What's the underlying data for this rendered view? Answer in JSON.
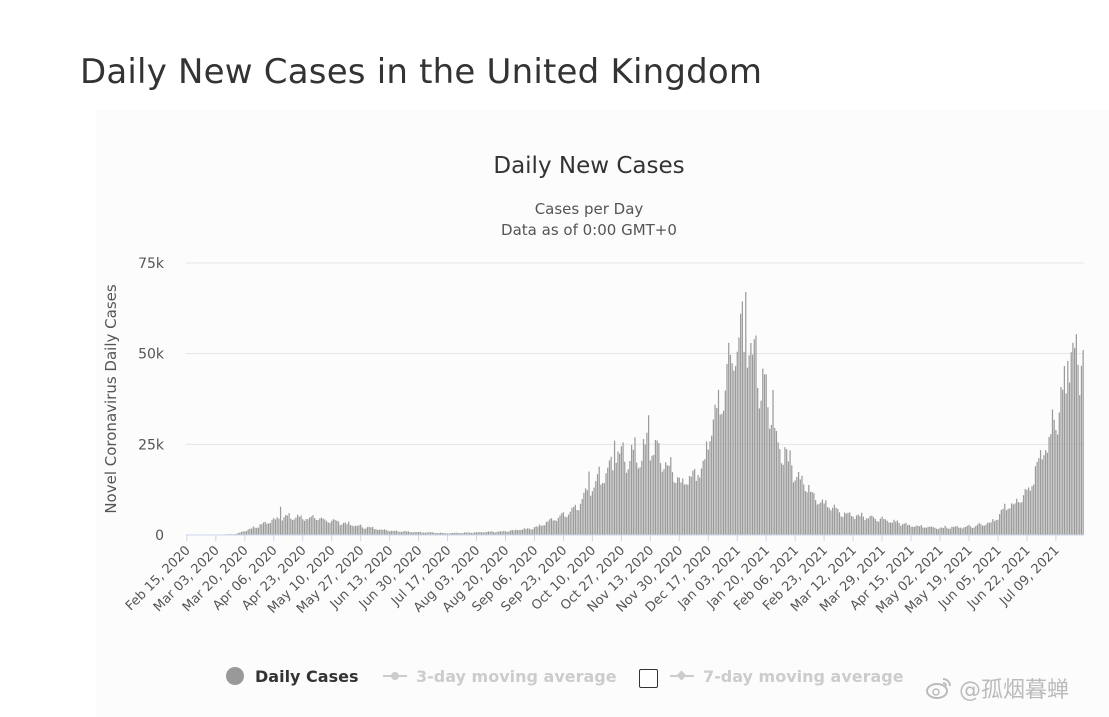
{
  "page": {
    "title": "Daily New Cases in the United Kingdom"
  },
  "colors": {
    "bar": "#9a9a9a",
    "grid": "#e6e6e6",
    "baseline": "#ccd6eb",
    "text": "#333333",
    "legend_inactive": "#cccccc"
  },
  "chart_data": {
    "type": "bar",
    "title": "Daily New Cases",
    "subtitle": "Cases per Day",
    "subtitle2": "Data as of 0:00 GMT+0",
    "ylabel": "Novel Coronavirus Daily Cases",
    "xlabel": "",
    "ylim": [
      0,
      75000
    ],
    "yticks": [
      0,
      25000,
      50000,
      75000
    ],
    "ytick_labels": [
      "0",
      "25k",
      "50k",
      "75k"
    ],
    "x_start": "2020-02-15",
    "x_end": "2021-07-25",
    "xtick_labels": [
      "Feb 15, 2020",
      "Mar 03, 2020",
      "Mar 20, 2020",
      "Apr 06, 2020",
      "Apr 23, 2020",
      "May 10, 2020",
      "May 27, 2020",
      "Jun 13, 2020",
      "Jun 30, 2020",
      "Jul 17, 2020",
      "Aug 03, 2020",
      "Aug 20, 2020",
      "Sep 06, 2020",
      "Sep 23, 2020",
      "Oct 10, 2020",
      "Oct 27, 2020",
      "Nov 13, 2020",
      "Nov 30, 2020",
      "Dec 17, 2020",
      "Jan 03, 2021",
      "Jan 20, 2021",
      "Feb 06, 2021",
      "Feb 23, 2021",
      "Mar 12, 2021",
      "Mar 29, 2021",
      "Apr 15, 2021",
      "May 02, 2021",
      "May 19, 2021",
      "Jun 05, 2021",
      "Jun 22, 2021",
      "Jul 09, 2021"
    ],
    "grid": true,
    "legend_position": "bottom",
    "keypoints": [
      [
        "2020-02-15",
        0
      ],
      [
        "2020-03-03",
        50
      ],
      [
        "2020-03-15",
        300
      ],
      [
        "2020-03-25",
        2000
      ],
      [
        "2020-04-05",
        4000
      ],
      [
        "2020-04-10",
        5000
      ],
      [
        "2020-04-24",
        4800
      ],
      [
        "2020-05-10",
        4000
      ],
      [
        "2020-05-25",
        2500
      ],
      [
        "2020-06-13",
        1200
      ],
      [
        "2020-06-30",
        800
      ],
      [
        "2020-07-17",
        500
      ],
      [
        "2020-08-03",
        700
      ],
      [
        "2020-08-20",
        1000
      ],
      [
        "2020-09-06",
        2000
      ],
      [
        "2020-09-23",
        5500
      ],
      [
        "2020-10-01",
        8000
      ],
      [
        "2020-10-10",
        14000
      ],
      [
        "2020-10-17",
        17000
      ],
      [
        "2020-10-24",
        21000
      ],
      [
        "2020-11-01",
        22000
      ],
      [
        "2020-11-08",
        22000
      ],
      [
        "2020-11-13",
        25000
      ],
      [
        "2020-11-20",
        21000
      ],
      [
        "2020-11-30",
        15000
      ],
      [
        "2020-12-07",
        15000
      ],
      [
        "2020-12-14",
        20000
      ],
      [
        "2020-12-21",
        33000
      ],
      [
        "2020-12-29",
        45000
      ],
      [
        "2021-01-03",
        55000
      ],
      [
        "2021-01-08",
        60000
      ],
      [
        "2021-01-12",
        48000
      ],
      [
        "2021-01-20",
        37000
      ],
      [
        "2021-01-27",
        25000
      ],
      [
        "2021-02-06",
        18000
      ],
      [
        "2021-02-15",
        12000
      ],
      [
        "2021-02-23",
        9000
      ],
      [
        "2021-03-05",
        6000
      ],
      [
        "2021-03-12",
        5500
      ],
      [
        "2021-03-29",
        4500
      ],
      [
        "2021-04-15",
        2500
      ],
      [
        "2021-05-02",
        2000
      ],
      [
        "2021-05-19",
        2300
      ],
      [
        "2021-06-01",
        3500
      ],
      [
        "2021-06-10",
        7500
      ],
      [
        "2021-06-22",
        11000
      ],
      [
        "2021-06-30",
        22000
      ],
      [
        "2021-07-05",
        26000
      ],
      [
        "2021-07-09",
        32000
      ],
      [
        "2021-07-16",
        42000
      ],
      [
        "2021-07-18",
        48000
      ],
      [
        "2021-07-19",
        46000
      ],
      [
        "2021-07-25",
        51000
      ]
    ],
    "peaks": [
      [
        "2020-04-10",
        7800
      ],
      [
        "2020-10-08",
        17500
      ],
      [
        "2020-10-23",
        26000
      ],
      [
        "2020-11-12",
        33000
      ],
      [
        "2020-12-22",
        35000
      ],
      [
        "2020-12-29",
        53000
      ],
      [
        "2021-01-05",
        61000
      ],
      [
        "2021-01-08",
        67000
      ],
      [
        "2021-01-14",
        55000
      ],
      [
        "2021-01-24",
        40000
      ],
      [
        "2021-07-16",
        48000
      ],
      [
        "2021-07-25",
        51000
      ]
    ],
    "series": [
      {
        "name": "Daily Cases"
      }
    ]
  },
  "legend": {
    "items": [
      {
        "label": "Daily Cases",
        "active": true
      },
      {
        "label": "3-day moving average",
        "active": false
      },
      {
        "label": "7-day moving average",
        "active": false
      }
    ]
  },
  "watermark": {
    "text": "@孤烟暮蝉"
  }
}
